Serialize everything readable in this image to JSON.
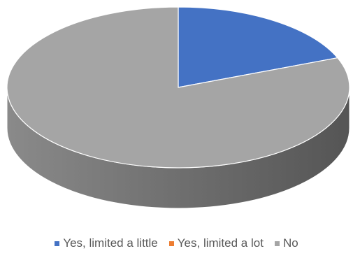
{
  "chart_data": {
    "type": "pie",
    "style": "3d",
    "categories": [
      "Yes, limited a little",
      "Yes, limited a lot",
      "No"
    ],
    "values": [
      19,
      0,
      81
    ],
    "colors": [
      "#4472C4",
      "#ED7D31",
      "#A5A5A5"
    ],
    "legend_position": "bottom"
  }
}
